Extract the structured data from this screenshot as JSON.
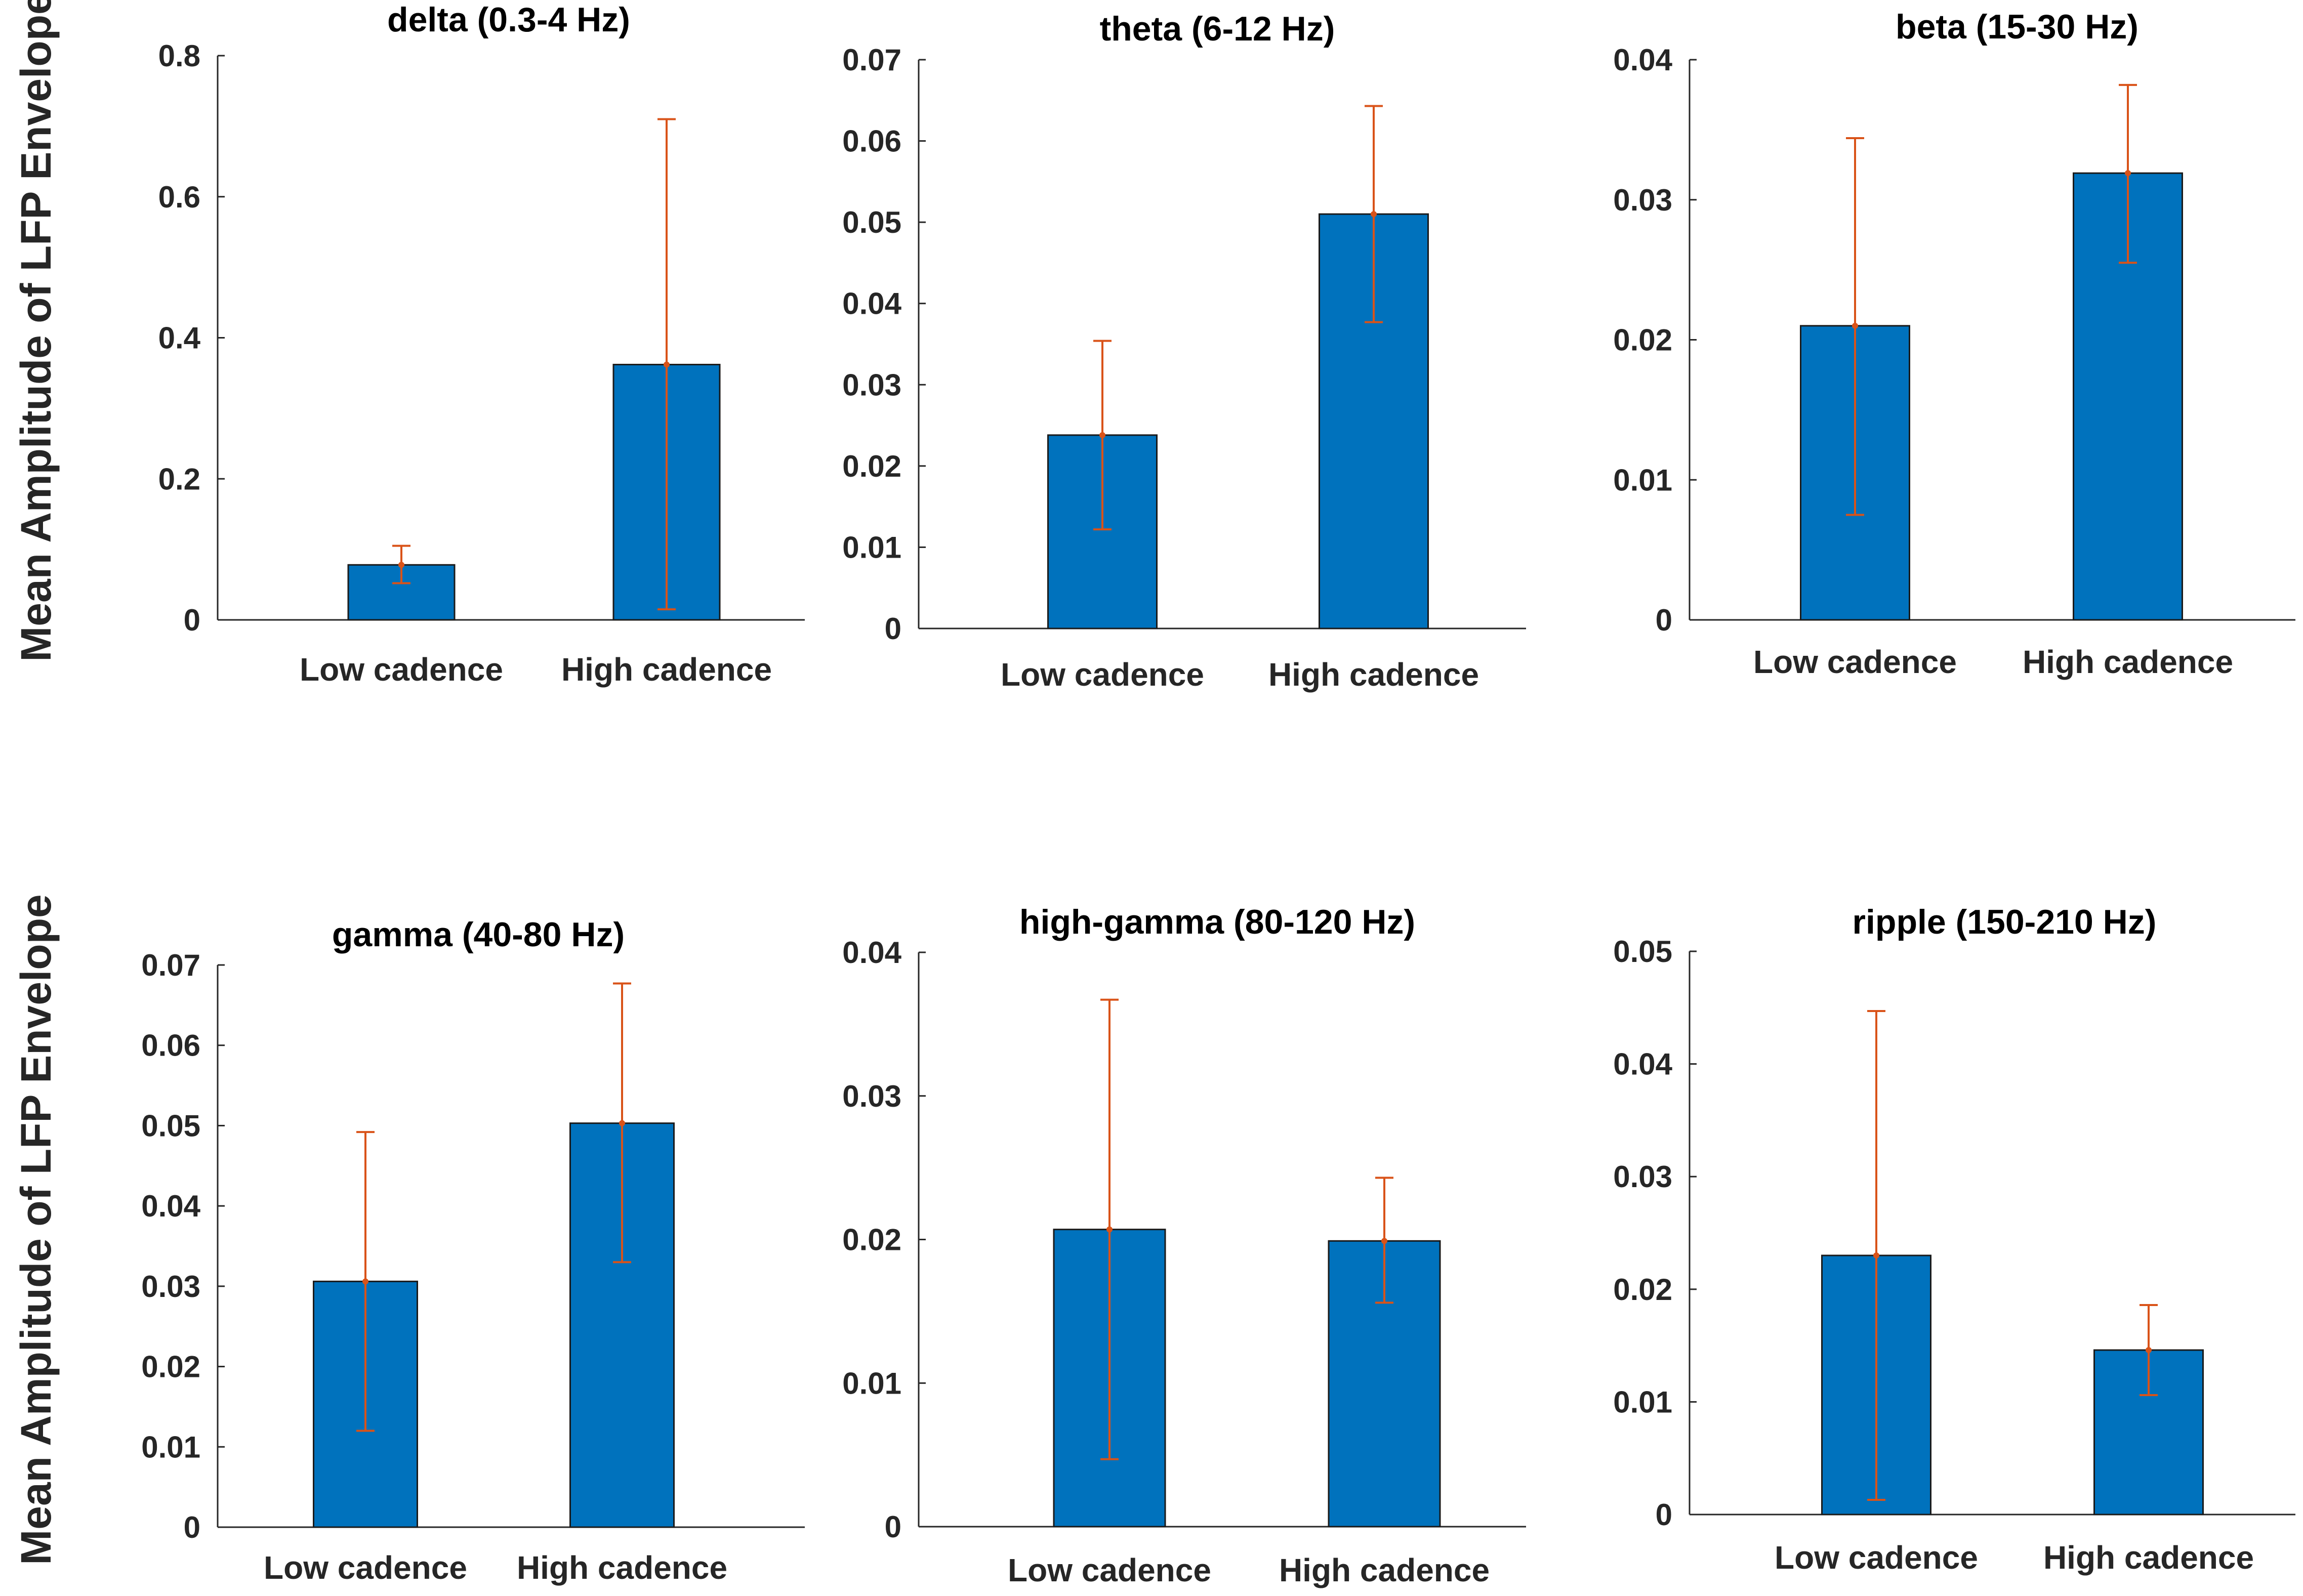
{
  "colors": {
    "bar": "#0072BD",
    "error": "#D95319",
    "axis": "#262626"
  },
  "ylabel": "Mean Amplitude of LFP Envelope",
  "chart_data": [
    {
      "type": "bar",
      "title": "delta (0.3-4 Hz)",
      "categories": [
        "Low cadence",
        "High cadence"
      ],
      "values": [
        0.078,
        0.362
      ],
      "error_low": [
        0.052,
        0.015
      ],
      "error_high": [
        0.105,
        0.71
      ],
      "ylim": [
        0,
        0.8
      ],
      "yticks": [
        0,
        0.2,
        0.4,
        0.6,
        0.8
      ],
      "ytick_labels": [
        "0",
        "0.2",
        "0.4",
        "0.6",
        "0.8"
      ],
      "ylabel": "Mean Amplitude of LFP Envelope",
      "xlabel": ""
    },
    {
      "type": "bar",
      "title": "theta (6-12 Hz)",
      "categories": [
        "Low cadence",
        "High cadence"
      ],
      "values": [
        0.0238,
        0.051
      ],
      "error_low": [
        0.0122,
        0.0377
      ],
      "error_high": [
        0.0354,
        0.0643
      ],
      "ylim": [
        0,
        0.07
      ],
      "yticks": [
        0,
        0.01,
        0.02,
        0.03,
        0.04,
        0.05,
        0.06,
        0.07
      ],
      "ytick_labels": [
        "0",
        "0.01",
        "0.02",
        "0.03",
        "0.04",
        "0.05",
        "0.06",
        "0.07"
      ],
      "ylabel": "",
      "xlabel": ""
    },
    {
      "type": "bar",
      "title": "beta (15-30 Hz)",
      "categories": [
        "Low cadence",
        "High cadence"
      ],
      "values": [
        0.021,
        0.0319
      ],
      "error_low": [
        0.0075,
        0.0255
      ],
      "error_high": [
        0.0344,
        0.0382
      ],
      "ylim": [
        0,
        0.04
      ],
      "yticks": [
        0,
        0.01,
        0.02,
        0.03,
        0.04
      ],
      "ytick_labels": [
        "0",
        "0.01",
        "0.02",
        "0.03",
        "0.04"
      ],
      "ylabel": "",
      "xlabel": ""
    },
    {
      "type": "bar",
      "title": "gamma (40-80 Hz)",
      "categories": [
        "Low cadence",
        "High cadence"
      ],
      "values": [
        0.0306,
        0.0503
      ],
      "error_low": [
        0.012,
        0.033
      ],
      "error_high": [
        0.0492,
        0.0677
      ],
      "ylim": [
        0,
        0.07
      ],
      "yticks": [
        0,
        0.01,
        0.02,
        0.03,
        0.04,
        0.05,
        0.06,
        0.07
      ],
      "ytick_labels": [
        "0",
        "0.01",
        "0.02",
        "0.03",
        "0.04",
        "0.05",
        "0.06",
        "0.07"
      ],
      "ylabel": "Mean Amplitude of LFP Envelope",
      "xlabel": ""
    },
    {
      "type": "bar",
      "title": "high-gamma (80-120 Hz)",
      "categories": [
        "Low cadence",
        "High cadence"
      ],
      "values": [
        0.0207,
        0.0199
      ],
      "error_low": [
        0.0047,
        0.0156
      ],
      "error_high": [
        0.0367,
        0.0243
      ],
      "ylim": [
        0,
        0.04
      ],
      "yticks": [
        0,
        0.01,
        0.02,
        0.03,
        0.04
      ],
      "ytick_labels": [
        "0",
        "0.01",
        "0.02",
        "0.03",
        "0.04"
      ],
      "ylabel": "",
      "xlabel": ""
    },
    {
      "type": "bar",
      "title": "ripple (150-210 Hz)",
      "categories": [
        "Low cadence",
        "High cadence"
      ],
      "values": [
        0.023,
        0.0146
      ],
      "error_low": [
        0.0013,
        0.0106
      ],
      "error_high": [
        0.0447,
        0.0186
      ],
      "ylim": [
        0,
        0.05
      ],
      "yticks": [
        0,
        0.01,
        0.02,
        0.03,
        0.04,
        0.05
      ],
      "ytick_labels": [
        "0",
        "0.01",
        "0.02",
        "0.03",
        "0.04",
        "0.05"
      ],
      "ylabel": "",
      "xlabel": ""
    }
  ]
}
